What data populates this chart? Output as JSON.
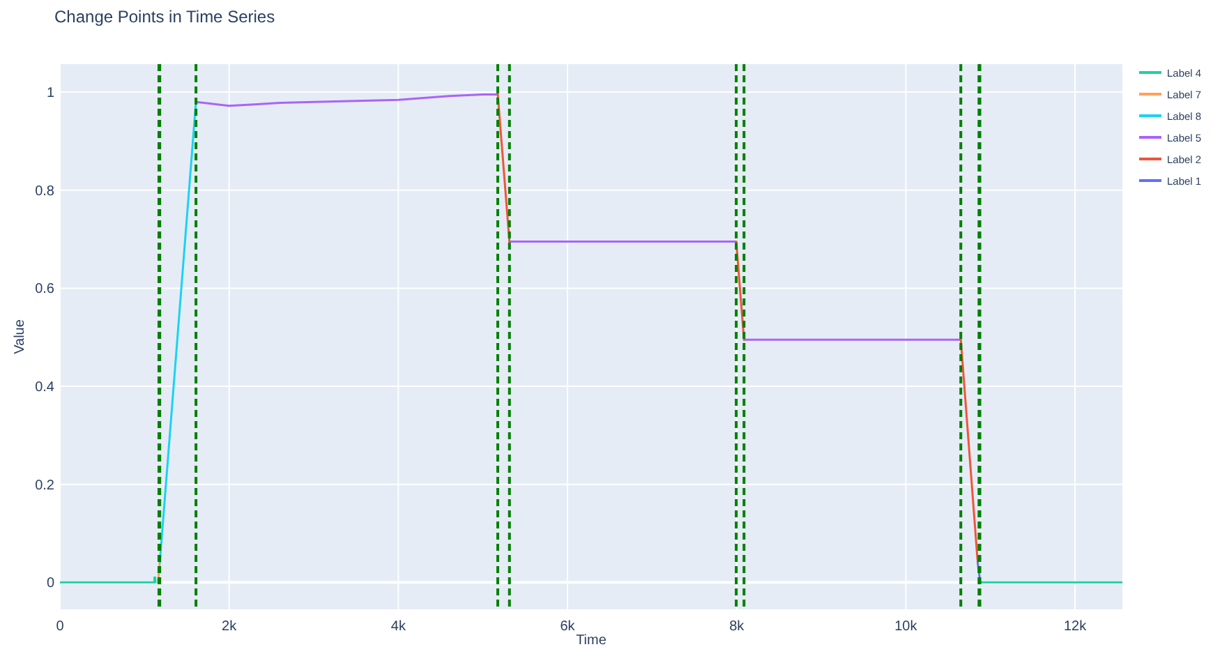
{
  "chart_data": {
    "type": "line",
    "title": "Change Points in Time Series",
    "xlabel": "Time",
    "ylabel": "Value",
    "xlim": [
      0,
      12560
    ],
    "ylim": [
      -0.055,
      1.057
    ],
    "xticks": [
      0,
      {
        "value": 2000,
        "label": "2k"
      },
      {
        "value": 4000,
        "label": "4k"
      },
      {
        "value": 6000,
        "label": "6k"
      },
      {
        "value": 8000,
        "label": "8k"
      },
      {
        "value": 10000,
        "label": "10k"
      },
      {
        "value": 12000,
        "label": "12k"
      }
    ],
    "yticks": [
      0,
      0.2,
      0.4,
      0.6,
      0.8,
      1
    ],
    "grid": true,
    "legend": "top right",
    "line_style": "solid",
    "marker": "none",
    "series": [
      {
        "name": "Label 4",
        "color": "#1cd3a2",
        "x": [
          0,
          1115,
          1118,
          1125,
          1130,
          null,
          10880,
          12560
        ],
        "values": [
          0,
          0,
          0.01,
          0.01,
          0,
          null,
          0,
          0
        ]
      },
      {
        "name": "Label 7",
        "color": "#ffa15a",
        "x": [
          1160,
          1180
        ],
        "values": [
          0,
          0.04
        ]
      },
      {
        "name": "Label 8",
        "color": "#19d3f3",
        "x": [
          1180,
          1608
        ],
        "values": [
          0.04,
          0.98
        ]
      },
      {
        "name": "Label 5",
        "color": "#ab63fa",
        "x": [
          1608,
          1700,
          2000,
          2300,
          2600,
          3000,
          3500,
          4000,
          4300,
          4600,
          5000,
          5176,
          null,
          5314,
          6000,
          7000,
          7995,
          null,
          8087,
          9000,
          10000,
          10650
        ],
        "values": [
          0.98,
          0.978,
          0.972,
          0.975,
          0.978,
          0.98,
          0.982,
          0.984,
          0.988,
          0.992,
          0.995,
          0.995,
          null,
          0.695,
          0.695,
          0.695,
          0.695,
          null,
          0.495,
          0.495,
          0.495,
          0.495
        ]
      },
      {
        "name": "Label 2",
        "color": "#ef553b",
        "x": [
          5176,
          5314,
          null,
          7995,
          8087,
          null,
          10650,
          10850
        ],
        "values": [
          0.995,
          0.695,
          null,
          0.695,
          0.495,
          null,
          0.495,
          0.04
        ]
      },
      {
        "name": "Label 1",
        "color": "#636efa",
        "x": [
          10850,
          10880
        ],
        "values": [
          0.04,
          0
        ]
      }
    ],
    "ref_lines": [
      {
        "axis": "x",
        "value": 1170,
        "color": "#008000",
        "line_style": "dashed"
      },
      {
        "axis": "x",
        "value": 1180,
        "color": "#008000",
        "line_style": "dashed"
      },
      {
        "axis": "x",
        "value": 1608,
        "color": "#008000",
        "line_style": "dashed"
      },
      {
        "axis": "x",
        "value": 5176,
        "color": "#008000",
        "line_style": "dashed"
      },
      {
        "axis": "x",
        "value": 5314,
        "color": "#008000",
        "line_style": "dashed"
      },
      {
        "axis": "x",
        "value": 7995,
        "color": "#008000",
        "line_style": "dashed"
      },
      {
        "axis": "x",
        "value": 8087,
        "color": "#008000",
        "line_style": "dashed"
      },
      {
        "axis": "x",
        "value": 10650,
        "color": "#008000",
        "line_style": "dashed"
      },
      {
        "axis": "x",
        "value": 10865,
        "color": "#008000",
        "line_style": "dashed"
      },
      {
        "axis": "x",
        "value": 10875,
        "color": "#008000",
        "line_style": "dashed"
      }
    ]
  }
}
